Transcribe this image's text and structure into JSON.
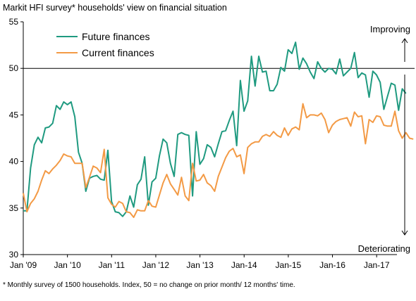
{
  "chart_data": {
    "type": "line",
    "title": "Markit HFI survey* households' view on financial situation",
    "footnote": "* Monthly survey of 1500 households.  Index, 50 = no change on prior month/ 12 months' time.",
    "annotations": {
      "up": "Improving",
      "down": "Deteriorating"
    },
    "xlabel": "",
    "ylabel": "",
    "ylim": [
      30,
      55
    ],
    "yticks": [
      30,
      35,
      40,
      45,
      50,
      55
    ],
    "xlim": [
      2009.0,
      2017.46
    ],
    "xticks": [
      {
        "label": "Jan '09",
        "x": 2009.0
      },
      {
        "label": "Jan '10",
        "x": 2010.0
      },
      {
        "label": "Jan '11",
        "x": 2011.0
      },
      {
        "label": "Jan '12",
        "x": 2012.0
      },
      {
        "label": "Jan '13",
        "x": 2013.0
      },
      {
        "label": "Jan-14",
        "x": 2014.0
      },
      {
        "label": "Jan-15",
        "x": 2015.0
      },
      {
        "label": "Jan-16",
        "x": 2016.0
      },
      {
        "label": "Jan-17",
        "x": 2017.0
      }
    ],
    "reference_line": 50,
    "grid": false,
    "legend_position": "top-left",
    "x_start": 2009.0,
    "x_step": 0.0833,
    "series": [
      {
        "name": "Future finances",
        "color": "#1f9a80",
        "values": [
          34.7,
          34.7,
          39.3,
          41.8,
          42.6,
          42.0,
          43.6,
          43.7,
          44.1,
          46.0,
          45.6,
          46.4,
          46.1,
          46.4,
          44.8,
          41.0,
          39.8,
          36.8,
          38.2,
          38.4,
          38.5,
          38.1,
          38.0,
          41.2,
          35.7,
          34.6,
          34.5,
          34.1,
          34.6,
          36.3,
          35.1,
          37.5,
          38.1,
          40.5,
          35.3,
          37.8,
          38.2,
          40.6,
          42.4,
          42.0,
          39.8,
          38.4,
          42.9,
          43.1,
          42.9,
          42.8,
          36.3,
          43.2,
          39.7,
          40.3,
          41.8,
          41.5,
          40.5,
          41.9,
          43.2,
          43.3,
          44.4,
          45.4,
          41.7,
          48.7,
          45.4,
          46.5,
          51.3,
          48.1,
          51.3,
          49.6,
          49.7,
          47.6,
          47.6,
          48.3,
          50.1,
          49.7,
          52.0,
          51.6,
          52.8,
          49.9,
          51.1,
          50.5,
          49.6,
          48.9,
          50.7,
          50.0,
          49.6,
          50.0,
          49.9,
          49.4,
          51.0,
          49.2,
          49.6,
          50.0,
          51.7,
          49.0,
          49.5,
          49.3,
          46.9,
          49.7,
          49.3,
          48.5,
          45.6,
          47.0,
          48.4,
          48.2,
          45.5,
          47.8,
          47.3
        ]
      },
      {
        "name": "Current finances",
        "color": "#f39a45",
        "values": [
          36.6,
          34.6,
          35.5,
          36.0,
          36.8,
          38.0,
          39.0,
          38.7,
          39.2,
          39.6,
          40.1,
          40.8,
          40.6,
          40.5,
          39.8,
          39.8,
          39.8,
          37.2,
          38.3,
          39.5,
          39.3,
          38.8,
          41.3,
          36.1,
          35.4,
          35.1,
          35.7,
          35.5,
          34.6,
          34.5,
          34.0,
          34.8,
          34.7,
          34.7,
          35.8,
          35.2,
          35.1,
          36.4,
          37.7,
          38.6,
          37.6,
          37.0,
          36.4,
          38.3,
          36.3,
          35.8,
          39.8,
          37.9,
          38.0,
          38.6,
          37.7,
          37.4,
          36.8,
          38.4,
          39.4,
          40.4,
          41.1,
          41.4,
          40.5,
          40.7,
          38.7,
          41.5,
          41.9,
          42.1,
          42.1,
          42.7,
          42.9,
          42.7,
          43.2,
          42.8,
          42.6,
          43.6,
          42.8,
          43.5,
          43.7,
          43.4,
          46.2,
          44.7,
          45.0,
          45.0,
          44.9,
          45.2,
          44.5,
          43.1,
          43.9,
          44.3,
          44.5,
          44.6,
          44.7,
          43.8,
          45.3,
          44.8,
          44.9,
          41.9,
          44.5,
          44.2,
          44.9,
          44.8,
          43.9,
          43.8,
          43.8,
          45.4,
          43.3,
          42.5,
          43.1,
          42.5,
          42.4
        ]
      }
    ]
  }
}
